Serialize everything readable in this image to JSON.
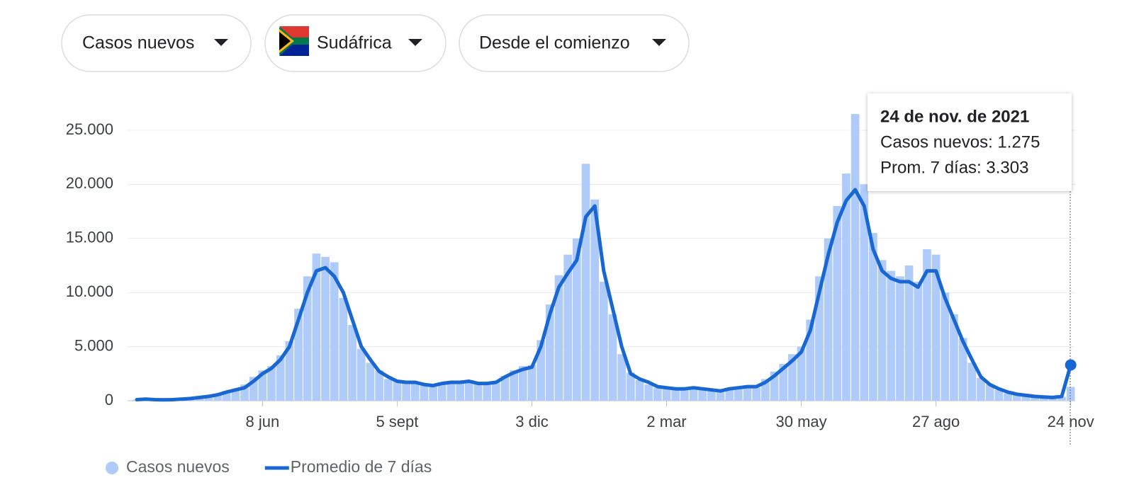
{
  "controls": [
    "Casos nuevos",
    "Sudáfrica",
    "Desde el comienzo"
  ],
  "tooltip": {
    "title": "24 de nov. de 2021",
    "lines": [
      "Casos nuevos: 1.275",
      "Prom. 7 días: 3.303"
    ]
  },
  "chart_data": {
    "type": "bar",
    "categories": [
      null,
      null,
      null,
      null,
      null,
      null,
      null,
      null,
      null,
      null,
      null,
      null,
      null,
      null,
      "8 jun",
      null,
      null,
      null,
      null,
      null,
      null,
      null,
      null,
      null,
      null,
      null,
      null,
      null,
      null,
      "5 sept",
      null,
      null,
      null,
      null,
      null,
      null,
      null,
      null,
      null,
      null,
      null,
      null,
      null,
      null,
      "3 dic",
      null,
      null,
      null,
      null,
      null,
      null,
      null,
      null,
      null,
      null,
      null,
      null,
      null,
      null,
      "2 mar",
      null,
      null,
      null,
      null,
      null,
      null,
      null,
      null,
      null,
      null,
      null,
      null,
      null,
      null,
      "30 may",
      null,
      null,
      null,
      null,
      null,
      null,
      null,
      null,
      null,
      null,
      null,
      null,
      null,
      null,
      "27 ago",
      null,
      null,
      null,
      null,
      null,
      null,
      null,
      null,
      null,
      null,
      null,
      null,
      null,
      null,
      "24 nov"
    ],
    "series": [
      {
        "name": "Casos nuevos",
        "type": "bar",
        "color": "#aecbfa",
        "values": [
          100,
          200,
          100,
          50,
          120,
          150,
          250,
          300,
          450,
          600,
          900,
          1100,
          1500,
          2200,
          2800,
          3200,
          4200,
          5500,
          8500,
          11500,
          13600,
          13300,
          12800,
          9500,
          7000,
          4800,
          3500,
          2800,
          2000,
          1900,
          1800,
          1600,
          1500,
          1300,
          1700,
          1800,
          1600,
          1900,
          1500,
          1700,
          1800,
          2300,
          2800,
          3200,
          3300,
          5600,
          8900,
          11600,
          13500,
          15000,
          21900,
          18600,
          11000,
          8000,
          4300,
          2600,
          1900,
          1500,
          1200,
          1300,
          1000,
          1200,
          1300,
          1000,
          900,
          800,
          1200,
          1300,
          1400,
          1200,
          2000,
          2700,
          3400,
          4300,
          5000,
          7500,
          11500,
          15000,
          18000,
          21000,
          26500,
          20000,
          15500,
          13000,
          12000,
          11500,
          12500,
          11000,
          14000,
          13500,
          10000,
          8000,
          5800,
          3500,
          2100,
          1500,
          1000,
          700,
          600,
          450,
          400,
          300,
          250,
          350,
          1275
        ]
      },
      {
        "name": "Promedio de 7 días",
        "type": "line",
        "color": "#1967d2",
        "values": [
          100,
          150,
          100,
          80,
          100,
          150,
          200,
          300,
          400,
          550,
          800,
          1000,
          1200,
          1800,
          2500,
          3000,
          3800,
          5000,
          7500,
          10000,
          12000,
          12300,
          11500,
          10000,
          7500,
          5000,
          3800,
          2700,
          2200,
          1800,
          1700,
          1700,
          1500,
          1400,
          1600,
          1700,
          1700,
          1800,
          1600,
          1600,
          1700,
          2200,
          2600,
          2900,
          3100,
          5000,
          8000,
          10500,
          11800,
          13000,
          17000,
          18000,
          12000,
          8500,
          5000,
          2500,
          2000,
          1700,
          1300,
          1200,
          1100,
          1100,
          1200,
          1100,
          1000,
          900,
          1100,
          1200,
          1300,
          1300,
          1700,
          2300,
          3000,
          3700,
          4500,
          6500,
          10000,
          13500,
          16500,
          18500,
          19500,
          18000,
          14000,
          12000,
          11300,
          11000,
          11000,
          10500,
          12000,
          12000,
          9500,
          7500,
          5500,
          3800,
          2200,
          1500,
          1100,
          800,
          600,
          500,
          400,
          350,
          300,
          400,
          3303
        ]
      }
    ],
    "ylim": [
      0,
      27000
    ],
    "yticks": [
      0,
      {
        "value": 5000,
        "label": "5.000"
      },
      {
        "value": 10000,
        "label": "10.000"
      },
      {
        "value": 15000,
        "label": "15.000"
      },
      {
        "value": 20000,
        "label": "20.000"
      },
      {
        "value": 25000,
        "label": "25.000"
      }
    ],
    "grid": true
  }
}
